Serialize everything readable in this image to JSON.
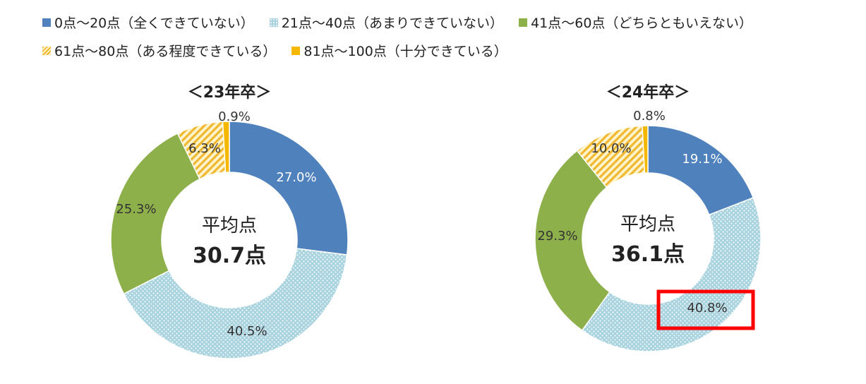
{
  "legend": {
    "items": [
      {
        "label": "0点～20点（全くできていない）",
        "color": "#4F81BD",
        "pattern": "solid"
      },
      {
        "label": "21点～40点（あまりできていない）",
        "color": "#9FCBD8",
        "pattern": "dots"
      },
      {
        "label": "41点～60点（どちらともいえない）",
        "color": "#8EB04B",
        "pattern": "solid"
      },
      {
        "label": "61点～80点（ある程度できている）",
        "color": "#F0B830",
        "pattern": "hatch"
      },
      {
        "label": "81点～100点（十分できている）",
        "color": "#F5B800",
        "pattern": "solid"
      }
    ]
  },
  "chart_data": [
    {
      "type": "pie",
      "title": "＜23年卒＞",
      "center_label": "平均点",
      "center_value": "30.7点",
      "categories": [
        "0点～20点",
        "21点～40点",
        "41点～60点",
        "61点～80点",
        "81点～100点"
      ],
      "values": [
        27.0,
        40.5,
        25.3,
        6.3,
        0.9
      ],
      "value_labels": [
        "27.0%",
        "40.5%",
        "25.3%",
        "6.3%",
        "0.9%"
      ]
    },
    {
      "type": "pie",
      "title": "＜24年卒＞",
      "center_label": "平均点",
      "center_value": "36.1点",
      "categories": [
        "0点～20点",
        "21点～40点",
        "41点～60点",
        "61点～80点",
        "81点～100点"
      ],
      "values": [
        19.1,
        40.8,
        29.3,
        10.0,
        0.8
      ],
      "value_labels": [
        "19.1%",
        "40.8%",
        "29.3%",
        "10.0%",
        "0.8%"
      ],
      "highlighted_index": 1,
      "highlight_color": "#FF0000"
    }
  ]
}
